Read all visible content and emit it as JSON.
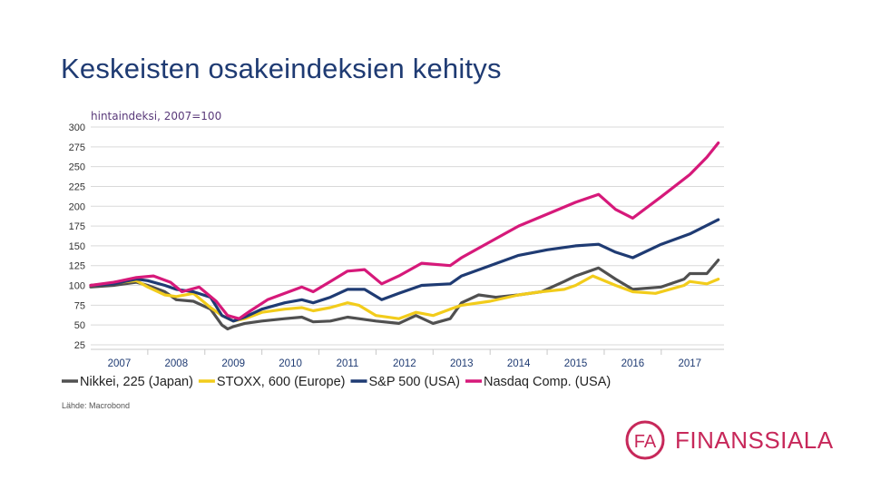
{
  "page": {
    "title": "Keskeisten osakeindeksien kehitys",
    "subtitle": "hintaindeksi, 2007=100",
    "source": "Lähde: Macrobond"
  },
  "logo": {
    "mark": "FA",
    "name": "FINANSSIALA",
    "color": "#c7285a"
  },
  "chart_data": {
    "type": "line",
    "title": "Keskeisten osakeindeksien kehitys",
    "subtitle": "hintaindeksi, 2007=100",
    "ylim": [
      25,
      300
    ],
    "yticks": [
      300,
      275,
      250,
      225,
      200,
      175,
      150,
      125,
      100,
      75,
      50,
      25
    ],
    "xlim": [
      2006.5,
      2017.6
    ],
    "xticks": [
      "2007",
      "2008",
      "2009",
      "2010",
      "2011",
      "2012",
      "2013",
      "2014",
      "2015",
      "2016",
      "2017"
    ],
    "grid": true,
    "legend_position": "bottom",
    "series": [
      {
        "name": "Nikkei, 225 (Japan)",
        "color": "#505050",
        "x": [
          2006.5,
          2006.9,
          2007.3,
          2007.5,
          2007.8,
          2008.0,
          2008.3,
          2008.6,
          2008.8,
          2008.9,
          2009.0,
          2009.2,
          2009.5,
          2009.9,
          2010.2,
          2010.4,
          2010.7,
          2011.0,
          2011.2,
          2011.5,
          2011.9,
          2012.2,
          2012.5,
          2012.8,
          2013.0,
          2013.3,
          2013.6,
          2014.0,
          2014.4,
          2014.8,
          2015.0,
          2015.4,
          2015.7,
          2016.0,
          2016.5,
          2016.9,
          2017.0,
          2017.3,
          2017.5
        ],
        "values": [
          98,
          100,
          104,
          100,
          92,
          82,
          80,
          70,
          50,
          45,
          48,
          52,
          55,
          58,
          60,
          54,
          55,
          60,
          58,
          55,
          52,
          62,
          52,
          58,
          78,
          88,
          85,
          88,
          92,
          105,
          112,
          122,
          108,
          95,
          98,
          108,
          115,
          115,
          132
        ]
      },
      {
        "name": "STOXX, 600 (Europe)",
        "color": "#f2cc1b",
        "x": [
          2006.5,
          2006.9,
          2007.3,
          2007.5,
          2007.8,
          2008.0,
          2008.3,
          2008.6,
          2008.8,
          2009.0,
          2009.2,
          2009.5,
          2009.9,
          2010.2,
          2010.4,
          2010.7,
          2011.0,
          2011.2,
          2011.5,
          2011.9,
          2012.2,
          2012.5,
          2012.8,
          2013.0,
          2013.5,
          2014.0,
          2014.4,
          2014.8,
          2015.0,
          2015.3,
          2015.7,
          2016.0,
          2016.4,
          2016.9,
          2017.0,
          2017.3,
          2017.5
        ],
        "values": [
          100,
          103,
          106,
          98,
          88,
          86,
          90,
          72,
          62,
          55,
          58,
          66,
          70,
          72,
          68,
          72,
          78,
          75,
          62,
          58,
          66,
          62,
          70,
          75,
          80,
          88,
          92,
          95,
          100,
          112,
          100,
          92,
          90,
          100,
          105,
          102,
          108
        ]
      },
      {
        "name": "S&P 500 (USA)",
        "color": "#1f3b73",
        "x": [
          2006.5,
          2006.9,
          2007.3,
          2007.5,
          2007.8,
          2008.0,
          2008.3,
          2008.6,
          2008.8,
          2009.0,
          2009.2,
          2009.5,
          2009.9,
          2010.2,
          2010.4,
          2010.7,
          2011.0,
          2011.3,
          2011.6,
          2011.9,
          2012.3,
          2012.8,
          2013.0,
          2013.5,
          2014.0,
          2014.5,
          2015.0,
          2015.4,
          2015.7,
          2016.0,
          2016.5,
          2017.0,
          2017.5
        ],
        "values": [
          100,
          102,
          108,
          106,
          100,
          95,
          92,
          85,
          62,
          55,
          60,
          70,
          78,
          82,
          78,
          85,
          95,
          95,
          82,
          90,
          100,
          102,
          112,
          125,
          138,
          145,
          150,
          152,
          142,
          135,
          152,
          165,
          183
        ]
      },
      {
        "name": "Nasdaq Comp. (USA)",
        "color": "#d6197a",
        "x": [
          2006.5,
          2006.9,
          2007.3,
          2007.6,
          2007.9,
          2008.1,
          2008.4,
          2008.7,
          2008.9,
          2009.1,
          2009.3,
          2009.6,
          2009.9,
          2010.2,
          2010.4,
          2010.7,
          2011.0,
          2011.3,
          2011.6,
          2011.9,
          2012.3,
          2012.8,
          2013.0,
          2013.5,
          2014.0,
          2014.5,
          2015.0,
          2015.4,
          2015.7,
          2016.0,
          2016.5,
          2017.0,
          2017.3,
          2017.5
        ],
        "values": [
          100,
          104,
          110,
          112,
          104,
          92,
          98,
          80,
          62,
          58,
          68,
          82,
          90,
          98,
          92,
          105,
          118,
          120,
          102,
          112,
          128,
          125,
          135,
          155,
          175,
          190,
          205,
          215,
          196,
          185,
          212,
          240,
          262,
          280
        ]
      }
    ]
  }
}
